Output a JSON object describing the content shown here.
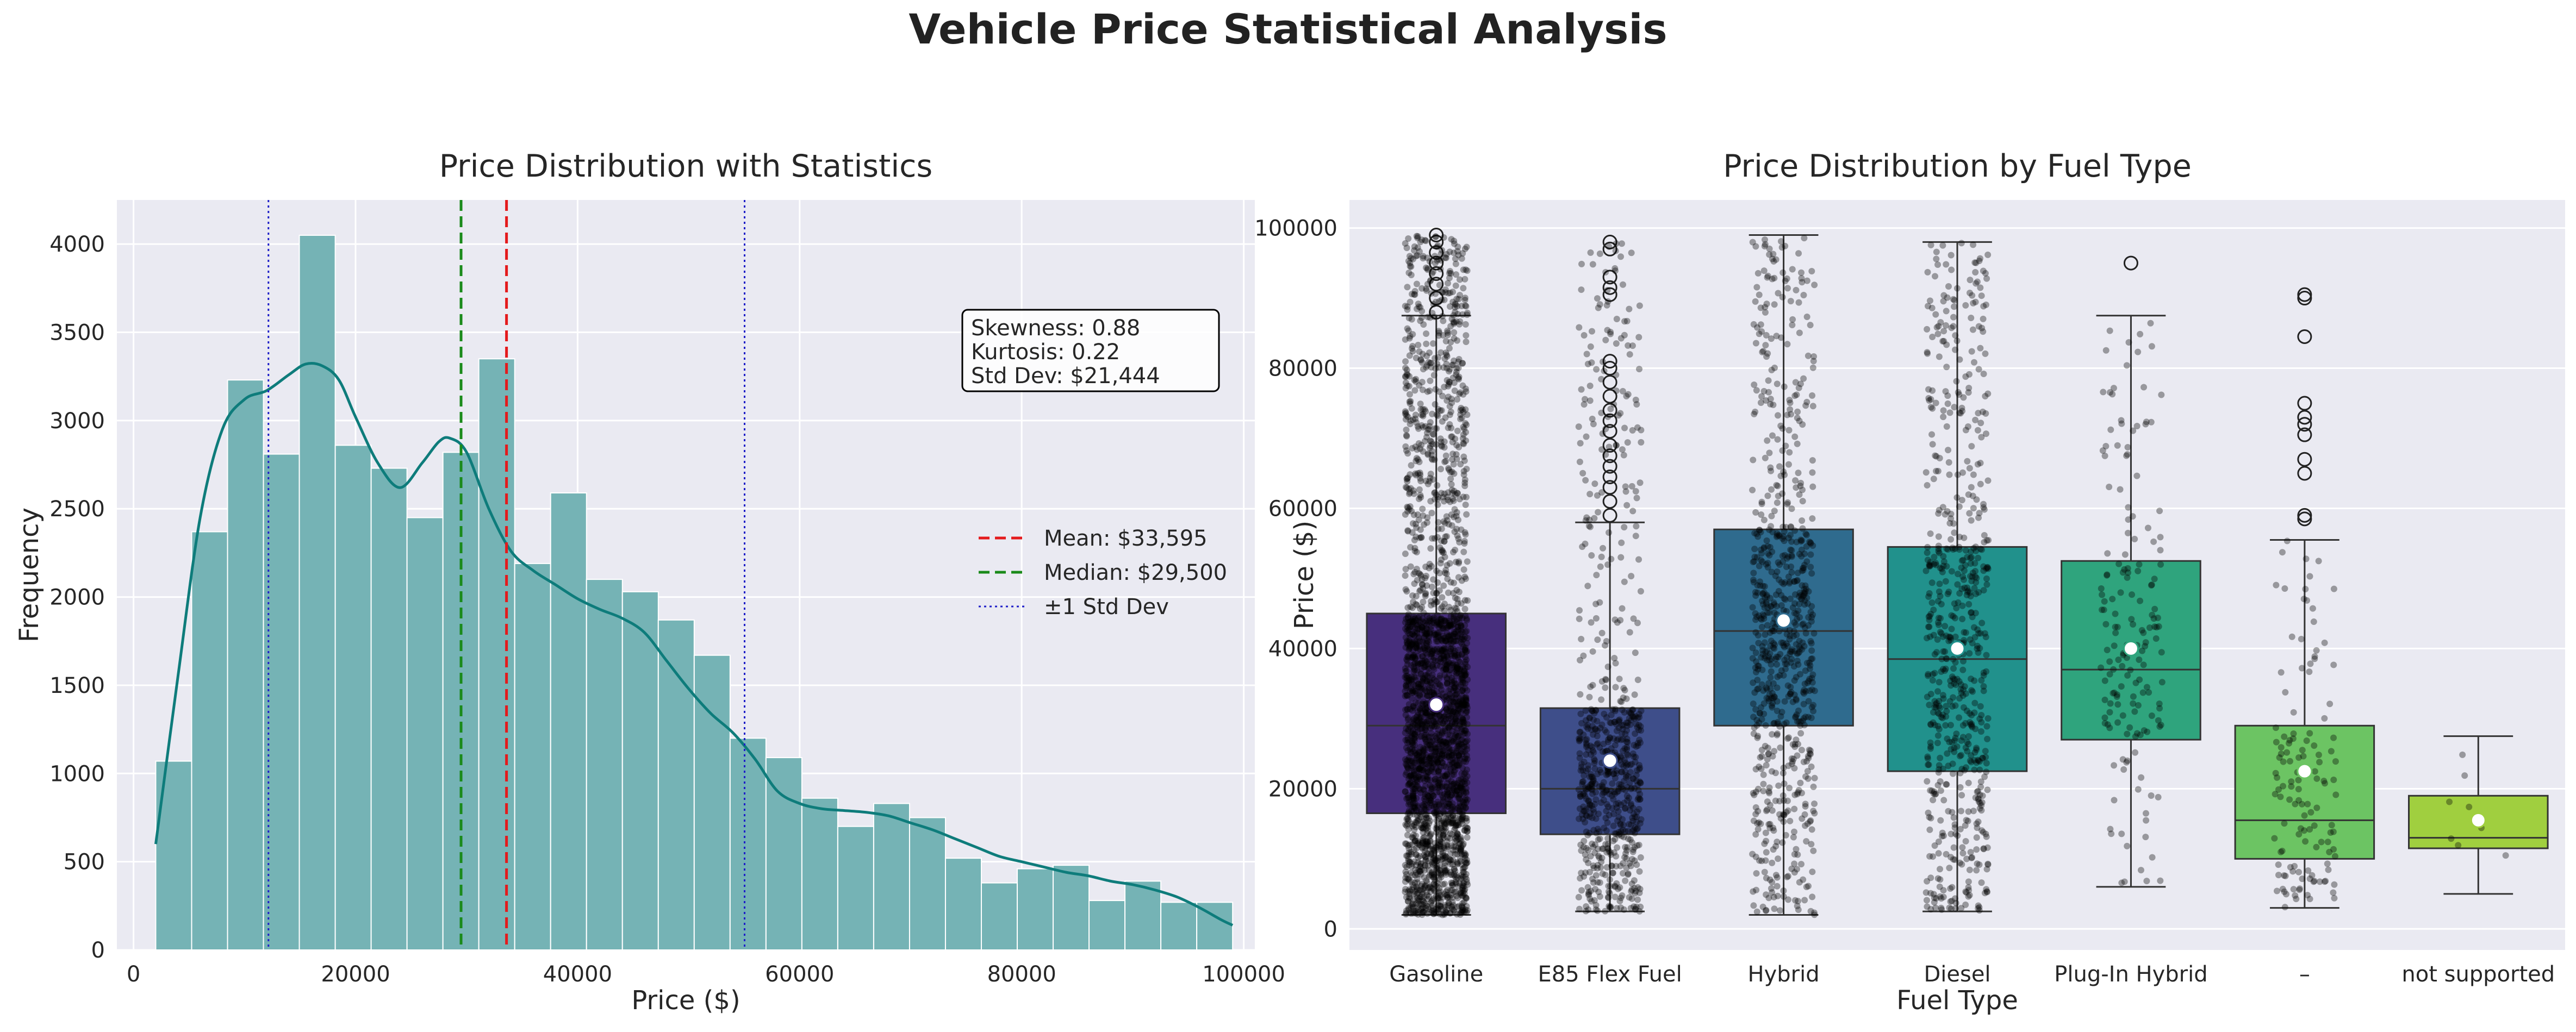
{
  "figure": {
    "title": "Vehicle Price Statistical Analysis"
  },
  "colors": {
    "panel_bg": "#eaeaf2",
    "grid": "#ffffff",
    "hist_bar": "#75b3b5",
    "kde": "#0e7c7b",
    "mean": "#e41a1c",
    "median": "#1a8a1a",
    "std": "#1f1fc8",
    "box_colors": [
      "#472f7d",
      "#3e4e8a",
      "#2f6b8e",
      "#21918c",
      "#2fa47d",
      "#6cc463",
      "#a0cf3f"
    ]
  },
  "chart_data": [
    {
      "type": "bar",
      "title": "Price Distribution with Statistics",
      "xlabel": "Price ($)",
      "ylabel": "Frequency",
      "xlim": [
        -1500,
        101000
      ],
      "ylim": [
        0,
        4250
      ],
      "xticks": [
        0,
        20000,
        40000,
        60000,
        80000,
        100000
      ],
      "xtick_labels": [
        "0",
        "20000",
        "40000",
        "60000",
        "80000",
        "100000"
      ],
      "yticks": [
        0,
        500,
        1000,
        1500,
        2000,
        2500,
        3000,
        3500,
        4000
      ],
      "ytick_labels": [
        "0",
        "500",
        "1000",
        "1500",
        "2000",
        "2500",
        "3000",
        "3500",
        "4000"
      ],
      "grid": true,
      "bin_edges": [
        2000,
        5233,
        8467,
        11700,
        14933,
        18167,
        21400,
        24633,
        27867,
        31100,
        34333,
        37567,
        40800,
        44033,
        47267,
        50500,
        53733,
        56967,
        60200,
        63433,
        66667,
        69900,
        73133,
        76367,
        79600,
        82833,
        86067,
        89300,
        92533,
        95767,
        99000
      ],
      "values": [
        1070,
        2370,
        3230,
        2810,
        4050,
        2860,
        2730,
        2450,
        2820,
        3350,
        2190,
        2590,
        2100,
        2030,
        1870,
        1670,
        1200,
        1090,
        860,
        700,
        830,
        750,
        520,
        380,
        460,
        480,
        280,
        390,
        270,
        270
      ],
      "kde": {
        "x": [
          2000,
          4000,
          6000,
          8000,
          10000,
          12000,
          14000,
          15500,
          17000,
          18500,
          20000,
          22000,
          24000,
          26000,
          27500,
          28500,
          30000,
          32000,
          34000,
          36000,
          38000,
          40000,
          42000,
          44000,
          46000,
          48000,
          50000,
          52000,
          54000,
          56000,
          58000,
          60000,
          62000,
          64000,
          66000,
          68000,
          70000,
          72000,
          74000,
          76000,
          78000,
          80000,
          82000,
          84000,
          86000,
          88000,
          90000,
          92000,
          94000,
          96000,
          98000,
          99000
        ],
        "y": [
          600,
          1550,
          2450,
          2950,
          3120,
          3170,
          3260,
          3320,
          3310,
          3230,
          3020,
          2760,
          2620,
          2760,
          2880,
          2900,
          2820,
          2500,
          2260,
          2150,
          2070,
          1990,
          1930,
          1880,
          1800,
          1640,
          1480,
          1340,
          1230,
          1080,
          900,
          830,
          800,
          790,
          780,
          760,
          720,
          680,
          630,
          580,
          530,
          500,
          470,
          440,
          420,
          390,
          370,
          340,
          300,
          240,
          170,
          140
        ]
      },
      "lines": [
        {
          "name": "Mean: $33,595",
          "x": 33595,
          "style": "dashed",
          "color": "#e41a1c"
        },
        {
          "name": "Median: $29,500",
          "x": 29500,
          "style": "dashed",
          "color": "#1a8a1a"
        },
        {
          "name": "±1 Std Dev",
          "x": [
            12151,
            55039
          ],
          "style": "dotted",
          "color": "#1f1fc8"
        }
      ],
      "legend": {
        "position": "right",
        "entries": [
          "Mean: $33,595",
          "Median: $29,500",
          "±1 Std Dev"
        ]
      },
      "stats_box": [
        "Skewness: 0.88",
        "Kurtosis: 0.22",
        "Std Dev: $21,444"
      ]
    },
    {
      "type": "box",
      "title": "Price Distribution by Fuel Type",
      "xlabel": "Fuel Type",
      "ylabel": "Price ($)",
      "ylim": [
        -3000,
        104000
      ],
      "yticks": [
        0,
        20000,
        40000,
        60000,
        80000,
        100000
      ],
      "ytick_labels": [
        "0",
        "20000",
        "40000",
        "60000",
        "80000",
        "100000"
      ],
      "grid": true,
      "categories": [
        "Gasoline",
        "E85 Flex Fuel",
        "Hybrid",
        "Diesel",
        "Plug-In Hybrid",
        "–",
        "not supported"
      ],
      "boxes": [
        {
          "q1": 16500,
          "median": 29000,
          "q3": 45000,
          "whisker_low": 2000,
          "whisker_high": 87500,
          "mean": 32000,
          "outliers": [
            88000,
            90000,
            92000,
            93500,
            95000,
            96500,
            98000,
            99000
          ],
          "jitter_count": 2600,
          "jitter_max": 99000
        },
        {
          "q1": 13500,
          "median": 20000,
          "q3": 31500,
          "whisker_low": 2500,
          "whisker_high": 58000,
          "mean": 24000,
          "outliers": [
            59000,
            61000,
            63000,
            64500,
            66000,
            67500,
            69000,
            71000,
            72500,
            74000,
            76000,
            78000,
            80000,
            81000,
            90500,
            91500,
            93000,
            97000,
            98000
          ],
          "jitter_count": 700,
          "jitter_max": 98000
        },
        {
          "q1": 29000,
          "median": 42500,
          "q3": 57000,
          "whisker_low": 2000,
          "whisker_high": 99000,
          "mean": 44000,
          "outliers": [],
          "jitter_count": 750,
          "jitter_max": 99000
        },
        {
          "q1": 22500,
          "median": 38500,
          "q3": 54500,
          "whisker_low": 2500,
          "whisker_high": 98000,
          "mean": 40000,
          "outliers": [],
          "jitter_count": 650,
          "jitter_max": 98000
        },
        {
          "q1": 27000,
          "median": 37000,
          "q3": 52500,
          "whisker_low": 6000,
          "whisker_high": 87500,
          "mean": 40000,
          "outliers": [
            95000
          ],
          "jitter_count": 170,
          "jitter_max": 87500
        },
        {
          "q1": 10000,
          "median": 15500,
          "q3": 29000,
          "whisker_low": 3000,
          "whisker_high": 55500,
          "mean": 22500,
          "outliers": [
            58500,
            59000,
            65000,
            67000,
            70500,
            72000,
            73000,
            75000,
            84500,
            90000,
            90500
          ],
          "jitter_count": 130,
          "jitter_max": 55500
        },
        {
          "q1": 11500,
          "median": 13000,
          "q3": 19000,
          "whisker_low": 5000,
          "whisker_high": 27500,
          "mean": 15500,
          "outliers": [],
          "jitter_count": 8,
          "jitter_max": 27500
        }
      ]
    }
  ]
}
